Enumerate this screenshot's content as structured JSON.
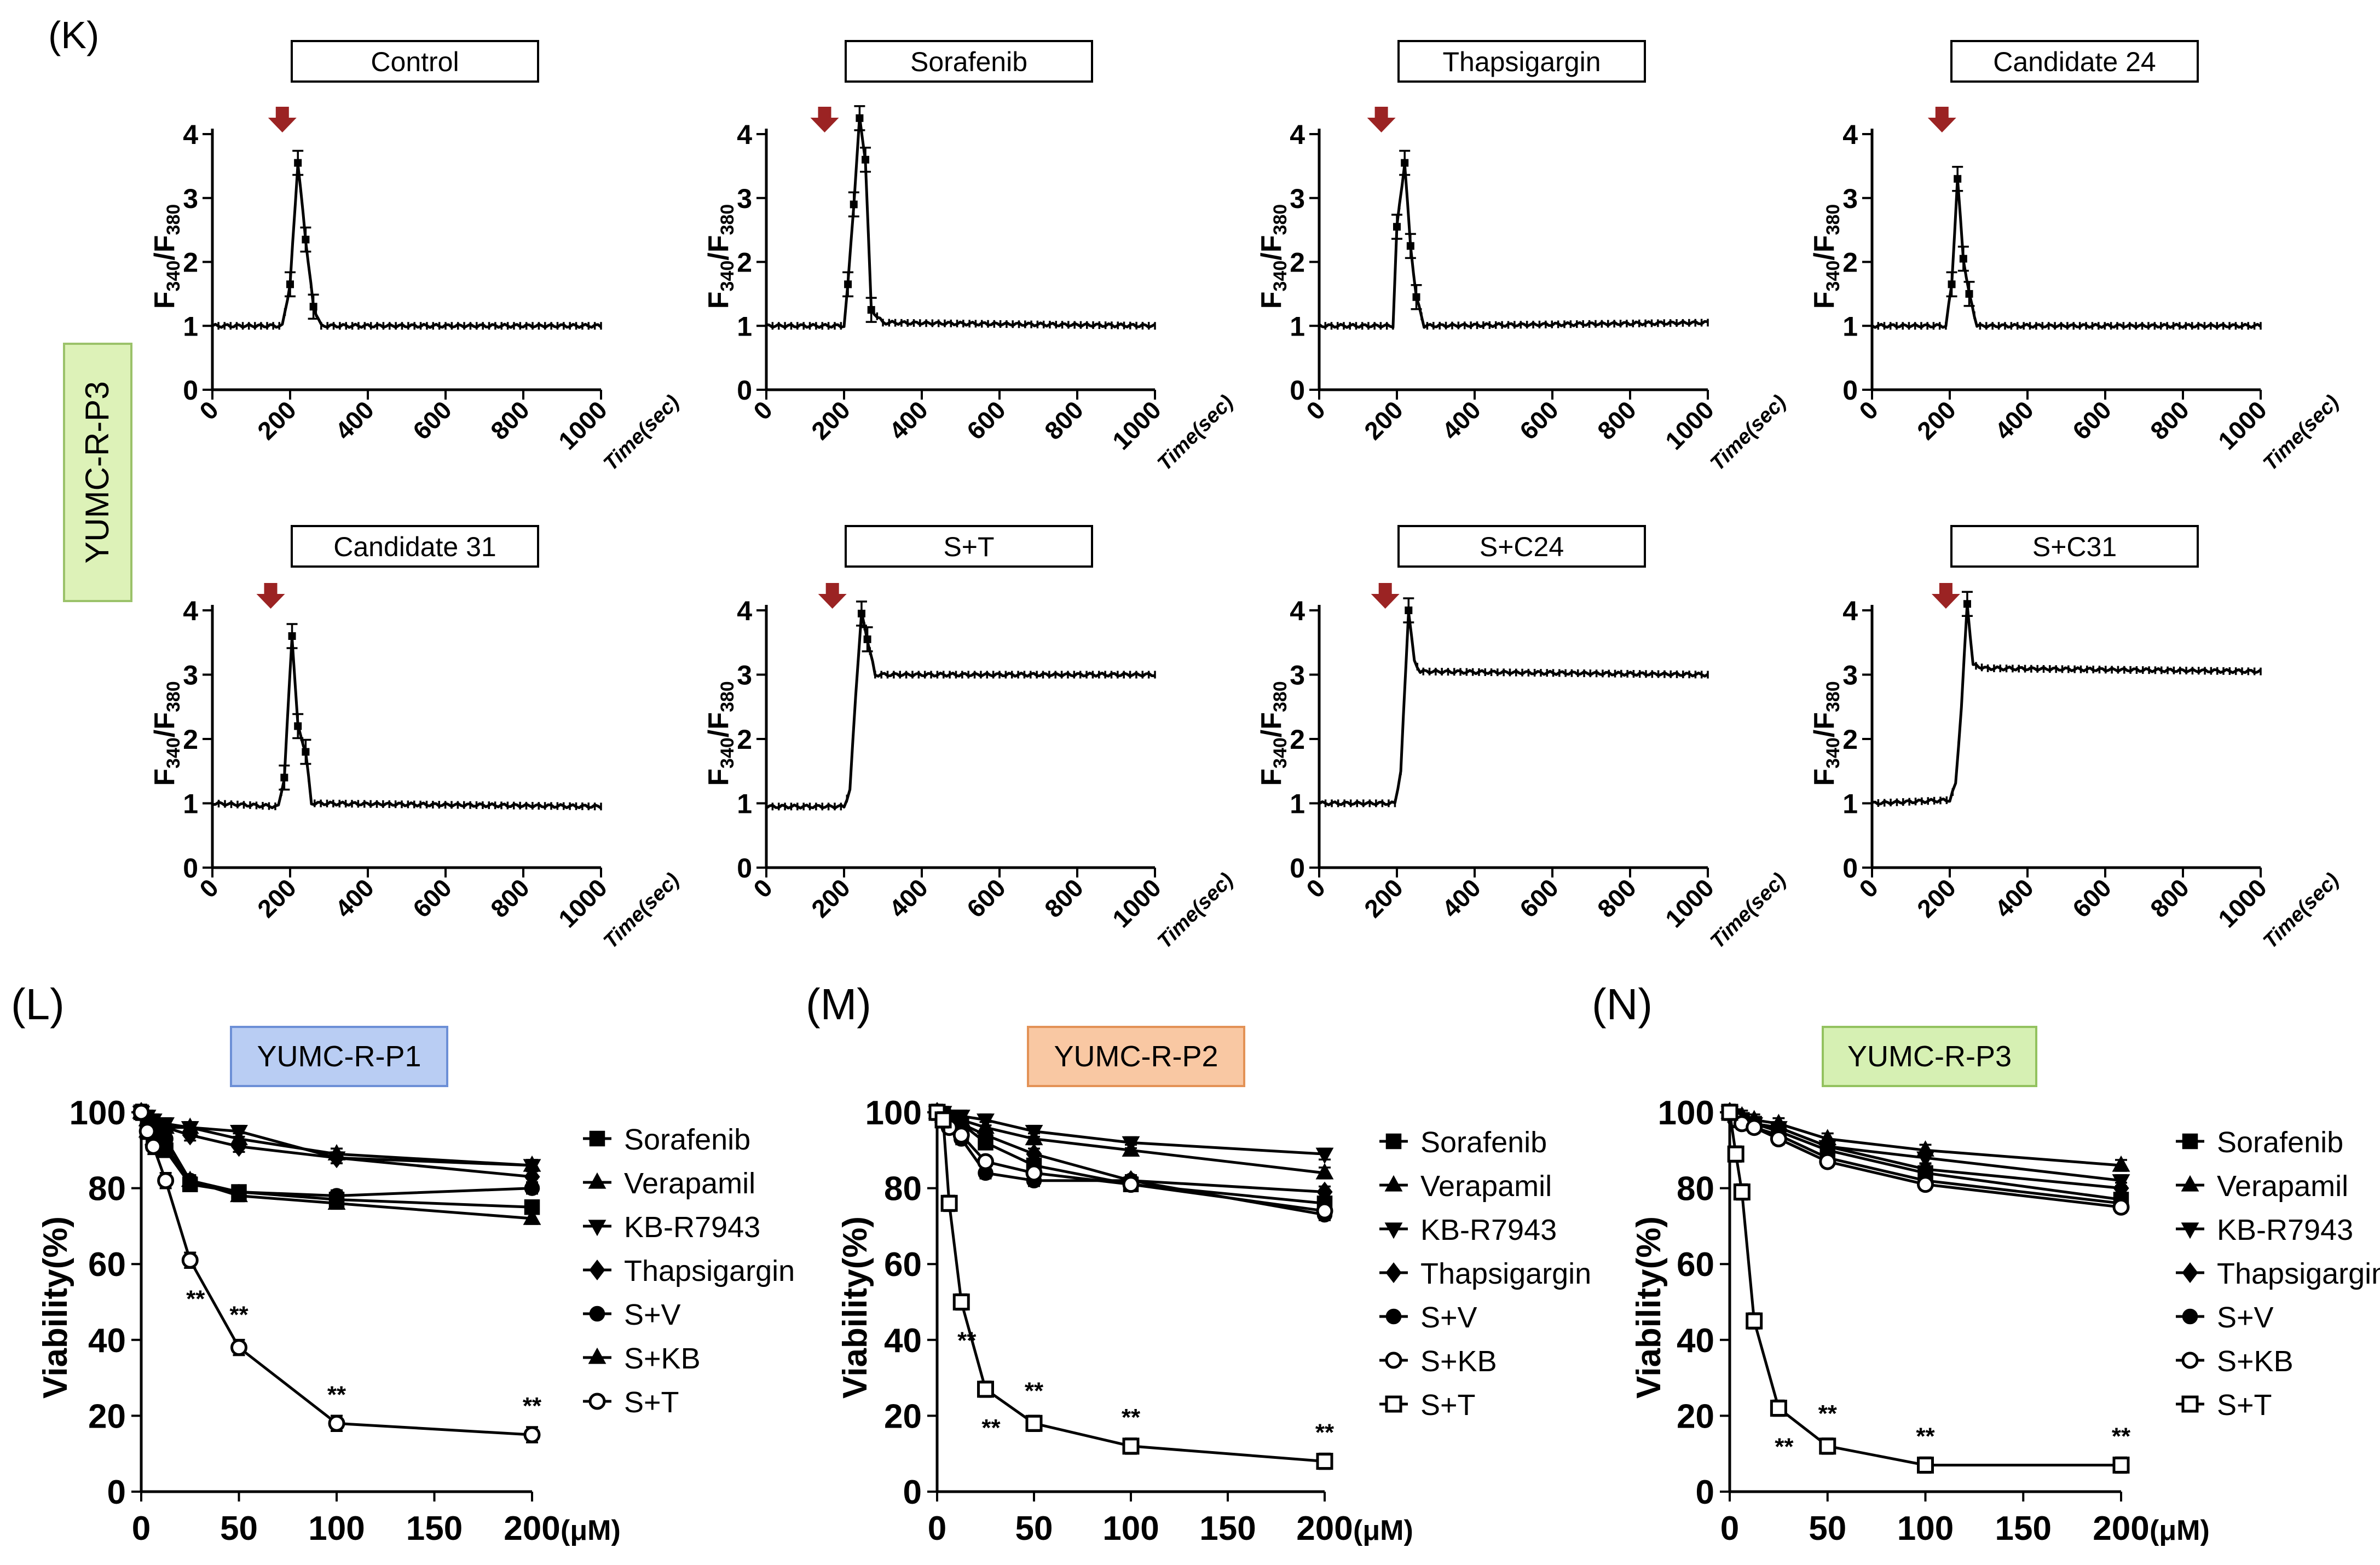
{
  "figure": {
    "panel_labels": {
      "K": "(K)",
      "L": "(L)",
      "M": "(M)",
      "N": "(N)"
    },
    "side_label": "YUMC-R-P3",
    "colors": {
      "side_label_bg": "#ddf2b8",
      "side_label_border": "#9bc26a",
      "p1_bg": "#b9cdf3",
      "p1_border": "#6c8fd6",
      "p2_bg": "#f9c8a3",
      "p2_border": "#e39256",
      "p3_bg": "#d6f0b3",
      "p3_border": "#93c25f",
      "arrow": "#9b2323"
    }
  },
  "chart_data": [
    {
      "panel": "K",
      "type": "line",
      "title": "Control",
      "ylabel": "F340/F380",
      "xlabel": "Time(sec)",
      "ylim": [
        0,
        4
      ],
      "xlim": [
        0,
        1000
      ],
      "xticks": [
        "0",
        "200",
        "400",
        "600",
        "800",
        "1000"
      ],
      "yticks": [
        "0",
        "1",
        "2",
        "3",
        "4"
      ],
      "stimulus_at": 180,
      "peak": 3.6,
      "plateau": 1.0,
      "points": [
        [
          0,
          1.0
        ],
        [
          180,
          1.0
        ],
        [
          200,
          1.65
        ],
        [
          220,
          3.55
        ],
        [
          240,
          2.35
        ],
        [
          260,
          1.3
        ],
        [
          280,
          1.0
        ],
        [
          1000,
          1.0
        ]
      ]
    },
    {
      "panel": "K",
      "type": "line",
      "title": "Sorafenib",
      "ylabel": "F340/F380",
      "xlabel": "Time(sec)",
      "ylim": [
        0,
        4
      ],
      "xlim": [
        0,
        1000
      ],
      "xticks": [
        "0",
        "200",
        "400",
        "600",
        "800",
        "1000"
      ],
      "yticks": [
        "0",
        "1",
        "2",
        "3",
        "4"
      ],
      "stimulus_at": 150,
      "peak": 4.3,
      "plateau": 1.0,
      "points": [
        [
          0,
          1.0
        ],
        [
          200,
          1.0
        ],
        [
          210,
          1.65
        ],
        [
          225,
          2.9
        ],
        [
          240,
          4.25
        ],
        [
          255,
          3.6
        ],
        [
          270,
          1.25
        ],
        [
          300,
          1.05
        ],
        [
          1000,
          1.0
        ]
      ]
    },
    {
      "panel": "K",
      "type": "line",
      "title": "Thapsigargin",
      "ylabel": "F340/F380",
      "xlabel": "Time(sec)",
      "ylim": [
        0,
        4
      ],
      "xlim": [
        0,
        1000
      ],
      "xticks": [
        "0",
        "200",
        "400",
        "600",
        "800",
        "1000"
      ],
      "yticks": [
        "0",
        "1",
        "2",
        "3",
        "4"
      ],
      "stimulus_at": 160,
      "peak": 3.6,
      "plateau": 1.0,
      "points": [
        [
          0,
          1.0
        ],
        [
          190,
          1.0
        ],
        [
          200,
          2.55
        ],
        [
          220,
          3.55
        ],
        [
          235,
          2.25
        ],
        [
          250,
          1.45
        ],
        [
          270,
          1.0
        ],
        [
          1000,
          1.05
        ]
      ]
    },
    {
      "panel": "K",
      "type": "line",
      "title": "Candidate  24",
      "ylabel": "F340/F380",
      "xlabel": "Time(sec)",
      "ylim": [
        0,
        4
      ],
      "xlim": [
        0,
        1000
      ],
      "xticks": [
        "0",
        "200",
        "400",
        "600",
        "800",
        "1000"
      ],
      "yticks": [
        "0",
        "1",
        "2",
        "3",
        "4"
      ],
      "stimulus_at": 180,
      "peak": 3.3,
      "plateau": 1.0,
      "points": [
        [
          0,
          1.0
        ],
        [
          190,
          1.0
        ],
        [
          205,
          1.65
        ],
        [
          220,
          3.3
        ],
        [
          235,
          2.05
        ],
        [
          250,
          1.5
        ],
        [
          270,
          1.0
        ],
        [
          1000,
          1.0
        ]
      ]
    },
    {
      "panel": "K",
      "type": "line",
      "title": "Candidate  31",
      "ylabel": "F340/F380",
      "xlabel": "Time(sec)",
      "ylim": [
        0,
        4
      ],
      "xlim": [
        0,
        1000
      ],
      "xticks": [
        "0",
        "200",
        "400",
        "600",
        "800",
        "1000"
      ],
      "yticks": [
        "0",
        "1",
        "2",
        "3",
        "4"
      ],
      "stimulus_at": 150,
      "peak": 3.6,
      "plateau": 1.0,
      "points": [
        [
          0,
          1.0
        ],
        [
          170,
          0.95
        ],
        [
          185,
          1.4
        ],
        [
          205,
          3.6
        ],
        [
          220,
          2.2
        ],
        [
          240,
          1.8
        ],
        [
          255,
          1.0
        ],
        [
          1000,
          0.95
        ]
      ]
    },
    {
      "panel": "K",
      "type": "line",
      "title": "S+T",
      "ylabel": "F340/F380",
      "xlabel": "Time(sec)",
      "ylim": [
        0,
        4
      ],
      "xlim": [
        0,
        1000
      ],
      "xticks": [
        "0",
        "200",
        "400",
        "600",
        "800",
        "1000"
      ],
      "yticks": [
        "0",
        "1",
        "2",
        "3",
        "4"
      ],
      "stimulus_at": 170,
      "peak": 4.0,
      "plateau": 3.0,
      "points": [
        [
          0,
          0.95
        ],
        [
          200,
          0.95
        ],
        [
          215,
          1.2
        ],
        [
          230,
          2.7
        ],
        [
          245,
          3.95
        ],
        [
          260,
          3.55
        ],
        [
          280,
          3.0
        ],
        [
          1000,
          3.0
        ]
      ]
    },
    {
      "panel": "K",
      "type": "line",
      "title": "S+C24",
      "ylabel": "F340/F380",
      "xlabel": "Time(sec)",
      "ylim": [
        0,
        4
      ],
      "xlim": [
        0,
        1000
      ],
      "xticks": [
        "0",
        "200",
        "400",
        "600",
        "800",
        "1000"
      ],
      "yticks": [
        "0",
        "1",
        "2",
        "3",
        "4"
      ],
      "stimulus_at": 170,
      "peak": 4.0,
      "plateau": 3.0,
      "points": [
        [
          0,
          1.0
        ],
        [
          195,
          1.0
        ],
        [
          210,
          1.5
        ],
        [
          230,
          4.0
        ],
        [
          245,
          3.2
        ],
        [
          260,
          3.05
        ],
        [
          1000,
          3.0
        ]
      ]
    },
    {
      "panel": "K",
      "type": "line",
      "title": "S+C31",
      "ylabel": "F340/F380",
      "xlabel": "Time(sec)",
      "ylim": [
        0,
        4
      ],
      "xlim": [
        0,
        1000
      ],
      "xticks": [
        "0",
        "200",
        "400",
        "600",
        "800",
        "1000"
      ],
      "yticks": [
        "0",
        "1",
        "2",
        "3",
        "4"
      ],
      "stimulus_at": 190,
      "peak": 4.1,
      "plateau": 3.05,
      "points": [
        [
          0,
          1.0
        ],
        [
          200,
          1.05
        ],
        [
          215,
          1.3
        ],
        [
          230,
          2.5
        ],
        [
          245,
          4.1
        ],
        [
          260,
          3.15
        ],
        [
          290,
          3.1
        ],
        [
          1000,
          3.05
        ]
      ]
    },
    {
      "panel": "L",
      "type": "line",
      "title": "YUMC-R-P1",
      "ylabel": "Viability(%)",
      "xunit": "(μM)",
      "ylim": [
        0,
        100
      ],
      "xlim": [
        0,
        200
      ],
      "xticks": [
        "0",
        "50",
        "100",
        "150",
        "200"
      ],
      "yticks": [
        "0",
        "20",
        "40",
        "60",
        "80",
        "100"
      ],
      "x": [
        0,
        3.125,
        6.25,
        12.5,
        25,
        50,
        100,
        200
      ],
      "series": [
        {
          "name": "Sorafenib",
          "marker": "square",
          "values": [
            100,
            95,
            92,
            90,
            81,
            79,
            77,
            75
          ]
        },
        {
          "name": "Verapamil",
          "marker": "triangle-up",
          "values": [
            100,
            98,
            97,
            96,
            96,
            93,
            89,
            86
          ]
        },
        {
          "name": "KB-R7943",
          "marker": "triangle-down",
          "values": [
            100,
            99,
            98,
            97,
            96,
            95,
            88,
            86
          ]
        },
        {
          "name": "Thapsigargin",
          "marker": "diamond",
          "values": [
            100,
            98,
            97,
            96,
            94,
            91,
            88,
            83
          ]
        },
        {
          "name": "S+V",
          "marker": "circle",
          "values": [
            100,
            96,
            94,
            93,
            82,
            79,
            78,
            80
          ]
        },
        {
          "name": "S+KB",
          "marker": "triangle-up",
          "values": [
            100,
            95,
            93,
            91,
            82,
            78,
            76,
            72
          ]
        },
        {
          "name": "S+T",
          "marker": "circle-open",
          "values": [
            100,
            95,
            91,
            82,
            61,
            38,
            18,
            15
          ]
        }
      ],
      "sig_labels": [
        {
          "x": 25,
          "label": "**"
        },
        {
          "x": 50,
          "label": "**"
        },
        {
          "x": 100,
          "label": "**"
        },
        {
          "x": 200,
          "label": "**"
        }
      ]
    },
    {
      "panel": "M",
      "type": "line",
      "title": "YUMC-R-P2",
      "ylabel": "Viability(%)",
      "xunit": "(μM)",
      "ylim": [
        0,
        100
      ],
      "xlim": [
        0,
        200
      ],
      "xticks": [
        "0",
        "50",
        "100",
        "150",
        "200"
      ],
      "yticks": [
        "0",
        "20",
        "40",
        "60",
        "80",
        "100"
      ],
      "x": [
        0,
        3.125,
        6.25,
        12.5,
        25,
        50,
        100,
        200
      ],
      "series": [
        {
          "name": "Sorafenib",
          "marker": "square",
          "values": [
            100,
            99,
            98,
            97,
            92,
            86,
            81,
            76
          ]
        },
        {
          "name": "Verapamil",
          "marker": "triangle-up",
          "values": [
            100,
            99,
            99,
            98,
            96,
            93,
            90,
            84
          ]
        },
        {
          "name": "KB-R7943",
          "marker": "triangle-down",
          "values": [
            100,
            100,
            99,
            99,
            98,
            95,
            92,
            89
          ]
        },
        {
          "name": "Thapsigargin",
          "marker": "diamond",
          "values": [
            100,
            99,
            98,
            97,
            94,
            89,
            82,
            79
          ]
        },
        {
          "name": "S+V",
          "marker": "circle",
          "values": [
            100,
            98,
            96,
            93,
            84,
            82,
            82,
            73
          ]
        },
        {
          "name": "S+KB",
          "marker": "circle-open",
          "values": [
            100,
            98,
            96,
            94,
            87,
            84,
            81,
            74
          ]
        },
        {
          "name": "S+T",
          "marker": "square-open",
          "values": [
            100,
            98,
            76,
            50,
            27,
            18,
            12,
            8
          ]
        }
      ],
      "sig_labels": [
        {
          "x": 12.5,
          "label": "**"
        },
        {
          "x": 25,
          "label": "**"
        },
        {
          "x": 50,
          "label": "**"
        },
        {
          "x": 100,
          "label": "**"
        },
        {
          "x": 200,
          "label": "**"
        }
      ]
    },
    {
      "panel": "N",
      "type": "line",
      "title": "YUMC-R-P3",
      "ylabel": "Viability(%)",
      "xunit": "(μM)",
      "ylim": [
        0,
        100
      ],
      "xlim": [
        0,
        200
      ],
      "xticks": [
        "0",
        "50",
        "100",
        "150",
        "200"
      ],
      "yticks": [
        "0",
        "20",
        "40",
        "60",
        "80",
        "100"
      ],
      "x": [
        0,
        3.125,
        6.25,
        12.5,
        25,
        50,
        100,
        200
      ],
      "series": [
        {
          "name": "Sorafenib",
          "marker": "square",
          "values": [
            100,
            99,
            98,
            97,
            95,
            90,
            84,
            77
          ]
        },
        {
          "name": "Verapamil",
          "marker": "triangle-up",
          "values": [
            100,
            99,
            99,
            98,
            97,
            93,
            90,
            86
          ]
        },
        {
          "name": "KB-R7943",
          "marker": "triangle-down",
          "values": [
            100,
            99,
            98,
            97,
            96,
            91,
            88,
            82
          ]
        },
        {
          "name": "Thapsigargin",
          "marker": "diamond",
          "values": [
            100,
            99,
            98,
            97,
            96,
            91,
            85,
            80
          ]
        },
        {
          "name": "S+V",
          "marker": "circle",
          "values": [
            100,
            98,
            97,
            96,
            94,
            88,
            82,
            76
          ]
        },
        {
          "name": "S+KB",
          "marker": "circle-open",
          "values": [
            100,
            98,
            97,
            96,
            93,
            87,
            81,
            75
          ]
        },
        {
          "name": "S+T",
          "marker": "square-open",
          "values": [
            100,
            89,
            79,
            45,
            22,
            12,
            7,
            7
          ]
        }
      ],
      "sig_labels": [
        {
          "x": 25,
          "label": "**"
        },
        {
          "x": 50,
          "label": "**"
        },
        {
          "x": 100,
          "label": "**"
        },
        {
          "x": 200,
          "label": "**"
        }
      ]
    }
  ]
}
